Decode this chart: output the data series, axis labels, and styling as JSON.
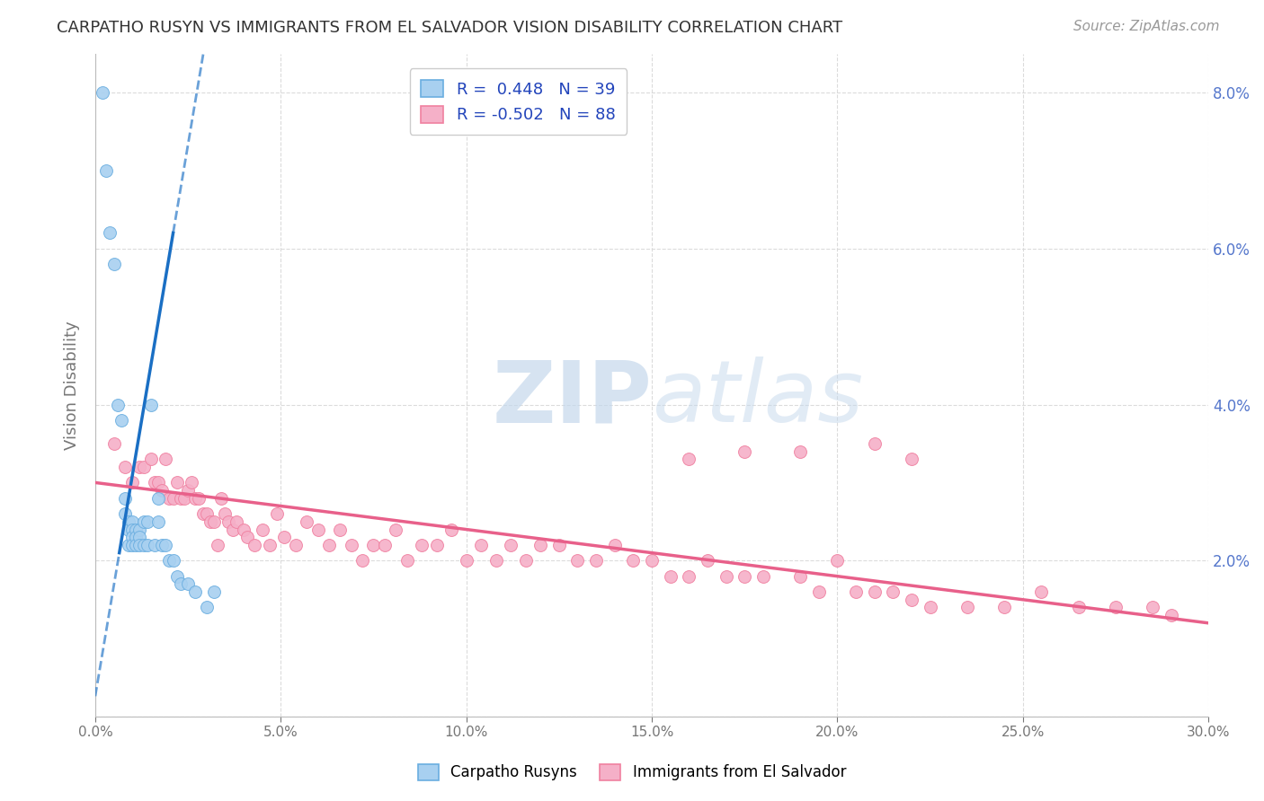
{
  "title": "CARPATHO RUSYN VS IMMIGRANTS FROM EL SALVADOR VISION DISABILITY CORRELATION CHART",
  "source": "Source: ZipAtlas.com",
  "ylabel_label": "Vision Disability",
  "legend_entries": [
    {
      "label": "R =  0.448   N = 39"
    },
    {
      "label": "R = -0.502   N = 88"
    }
  ],
  "blue_scatter_x": [
    0.002,
    0.003,
    0.004,
    0.005,
    0.006,
    0.007,
    0.008,
    0.008,
    0.009,
    0.009,
    0.009,
    0.01,
    0.01,
    0.01,
    0.01,
    0.011,
    0.011,
    0.011,
    0.012,
    0.012,
    0.012,
    0.013,
    0.013,
    0.014,
    0.014,
    0.015,
    0.016,
    0.017,
    0.017,
    0.018,
    0.019,
    0.02,
    0.021,
    0.022,
    0.023,
    0.025,
    0.027,
    0.03,
    0.032
  ],
  "blue_scatter_y": [
    0.08,
    0.07,
    0.062,
    0.058,
    0.04,
    0.038,
    0.028,
    0.026,
    0.025,
    0.024,
    0.022,
    0.025,
    0.024,
    0.023,
    0.022,
    0.024,
    0.023,
    0.022,
    0.024,
    0.023,
    0.022,
    0.025,
    0.022,
    0.025,
    0.022,
    0.04,
    0.022,
    0.025,
    0.028,
    0.022,
    0.022,
    0.02,
    0.02,
    0.018,
    0.017,
    0.017,
    0.016,
    0.014,
    0.016
  ],
  "pink_scatter_x": [
    0.005,
    0.008,
    0.01,
    0.012,
    0.013,
    0.015,
    0.016,
    0.017,
    0.018,
    0.019,
    0.02,
    0.021,
    0.022,
    0.023,
    0.024,
    0.025,
    0.026,
    0.027,
    0.028,
    0.029,
    0.03,
    0.031,
    0.032,
    0.033,
    0.034,
    0.035,
    0.036,
    0.037,
    0.038,
    0.04,
    0.041,
    0.043,
    0.045,
    0.047,
    0.049,
    0.051,
    0.054,
    0.057,
    0.06,
    0.063,
    0.066,
    0.069,
    0.072,
    0.075,
    0.078,
    0.081,
    0.084,
    0.088,
    0.092,
    0.096,
    0.1,
    0.104,
    0.108,
    0.112,
    0.116,
    0.12,
    0.125,
    0.13,
    0.135,
    0.14,
    0.145,
    0.15,
    0.155,
    0.16,
    0.165,
    0.17,
    0.175,
    0.18,
    0.19,
    0.195,
    0.2,
    0.205,
    0.21,
    0.215,
    0.22,
    0.225,
    0.235,
    0.245,
    0.255,
    0.265,
    0.275,
    0.285,
    0.29,
    0.21,
    0.22,
    0.19,
    0.175,
    0.16
  ],
  "pink_scatter_y": [
    0.035,
    0.032,
    0.03,
    0.032,
    0.032,
    0.033,
    0.03,
    0.03,
    0.029,
    0.033,
    0.028,
    0.028,
    0.03,
    0.028,
    0.028,
    0.029,
    0.03,
    0.028,
    0.028,
    0.026,
    0.026,
    0.025,
    0.025,
    0.022,
    0.028,
    0.026,
    0.025,
    0.024,
    0.025,
    0.024,
    0.023,
    0.022,
    0.024,
    0.022,
    0.026,
    0.023,
    0.022,
    0.025,
    0.024,
    0.022,
    0.024,
    0.022,
    0.02,
    0.022,
    0.022,
    0.024,
    0.02,
    0.022,
    0.022,
    0.024,
    0.02,
    0.022,
    0.02,
    0.022,
    0.02,
    0.022,
    0.022,
    0.02,
    0.02,
    0.022,
    0.02,
    0.02,
    0.018,
    0.018,
    0.02,
    0.018,
    0.018,
    0.018,
    0.018,
    0.016,
    0.02,
    0.016,
    0.016,
    0.016,
    0.015,
    0.014,
    0.014,
    0.014,
    0.016,
    0.014,
    0.014,
    0.014,
    0.013,
    0.035,
    0.033,
    0.034,
    0.034,
    0.033
  ],
  "blue_solid_line_x": [
    0.0065,
    0.021
  ],
  "blue_solid_line_y": [
    0.021,
    0.062
  ],
  "blue_dash_line_x": [
    0.0,
    0.009
  ],
  "blue_dash_line_y": [
    0.006,
    0.025
  ],
  "pink_line_x": [
    0.0,
    0.3
  ],
  "pink_line_y": [
    0.03,
    0.012
  ],
  "blue_scatter_color": "#a8d0f0",
  "blue_edge_color": "#6aaee0",
  "pink_scatter_color": "#f5b0c8",
  "pink_edge_color": "#f080a0",
  "blue_line_color": "#1a6fc4",
  "pink_line_color": "#e8608a",
  "watermark_color": "#c5d8ec",
  "background_color": "#ffffff",
  "grid_color": "#d8d8d8",
  "tick_color": "#5577cc",
  "xlim": [
    0.0,
    0.3
  ],
  "ylim": [
    0.0,
    0.085
  ]
}
